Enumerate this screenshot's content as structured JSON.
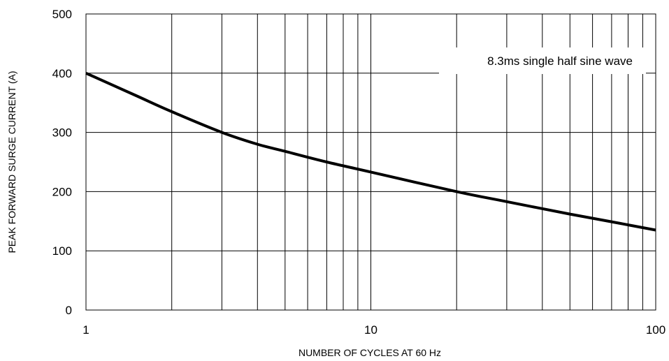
{
  "chart_data": {
    "type": "line",
    "title": "",
    "xlabel": "NUMBER OF CYCLES AT 60 Hz",
    "ylabel": "PEAK FORWARD SURGE CURRENT (A)",
    "xscale": "log",
    "xlim": [
      1,
      100
    ],
    "ylim": [
      0,
      500
    ],
    "x_ticks": [
      "1",
      "10",
      "100"
    ],
    "y_ticks": [
      "0",
      "100",
      "200",
      "300",
      "400",
      "500"
    ],
    "grid": true,
    "annotation": "8.3ms single half sine wave",
    "series": [
      {
        "x": [
          1,
          1.5,
          2,
          3,
          4,
          5,
          7,
          10,
          20,
          30,
          50,
          70,
          100
        ],
        "y": [
          400,
          362,
          335,
          300,
          280,
          268,
          250,
          233,
          200,
          183,
          162,
          149,
          135
        ]
      }
    ]
  }
}
